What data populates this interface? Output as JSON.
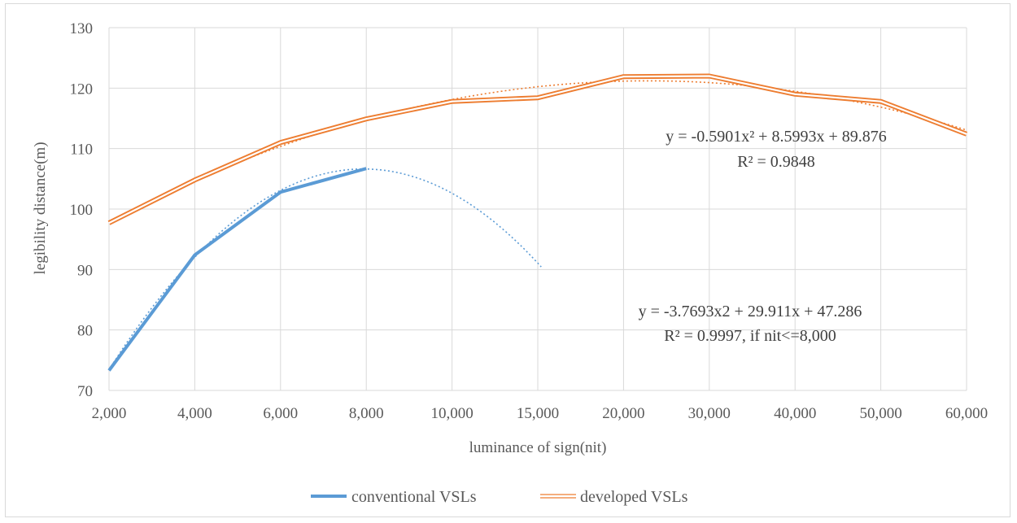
{
  "chart_data": {
    "type": "line",
    "categories": [
      "2,000",
      "4,000",
      "6,000",
      "8,000",
      "10,000",
      "15,000",
      "20,000",
      "30,000",
      "40,000",
      "50,000",
      "60,000"
    ],
    "xlabel": "luminance of sign(nit)",
    "ylabel": "legibility distance(m)",
    "ylim": [
      70,
      130
    ],
    "yticks": [
      70,
      80,
      90,
      100,
      110,
      120,
      130
    ],
    "grid": true,
    "legend_position": "bottom",
    "series": [
      {
        "name": "conventional VSLs",
        "color": "#5b9bd5",
        "values": [
          73.3,
          92.4,
          102.8,
          106.7,
          null,
          null,
          null,
          null,
          null,
          null,
          null
        ],
        "trendline": {
          "type": "polynomial",
          "coefficients": [
            -3.7693,
            29.911,
            47.286
          ],
          "domain_index": [
            1,
            6.04
          ],
          "equation": "y = -3.7693x2 + 29.911x + 47.286",
          "r2": "R² = 0.9997, if nit<=8,000"
        }
      },
      {
        "name": "developed VSLs",
        "color": "#ed7d31",
        "values": [
          97.7,
          104.8,
          111.0,
          114.9,
          117.8,
          118.4,
          121.9,
          122.0,
          119.0,
          117.8,
          112.4
        ],
        "trendline": {
          "type": "polynomial",
          "coefficients": [
            -0.5901,
            8.5993,
            89.876
          ],
          "domain_index": [
            1,
            11
          ],
          "equation": "y = -0.5901x² + 8.5993x + 89.876",
          "r2": "R² = 0.9848"
        }
      }
    ]
  }
}
